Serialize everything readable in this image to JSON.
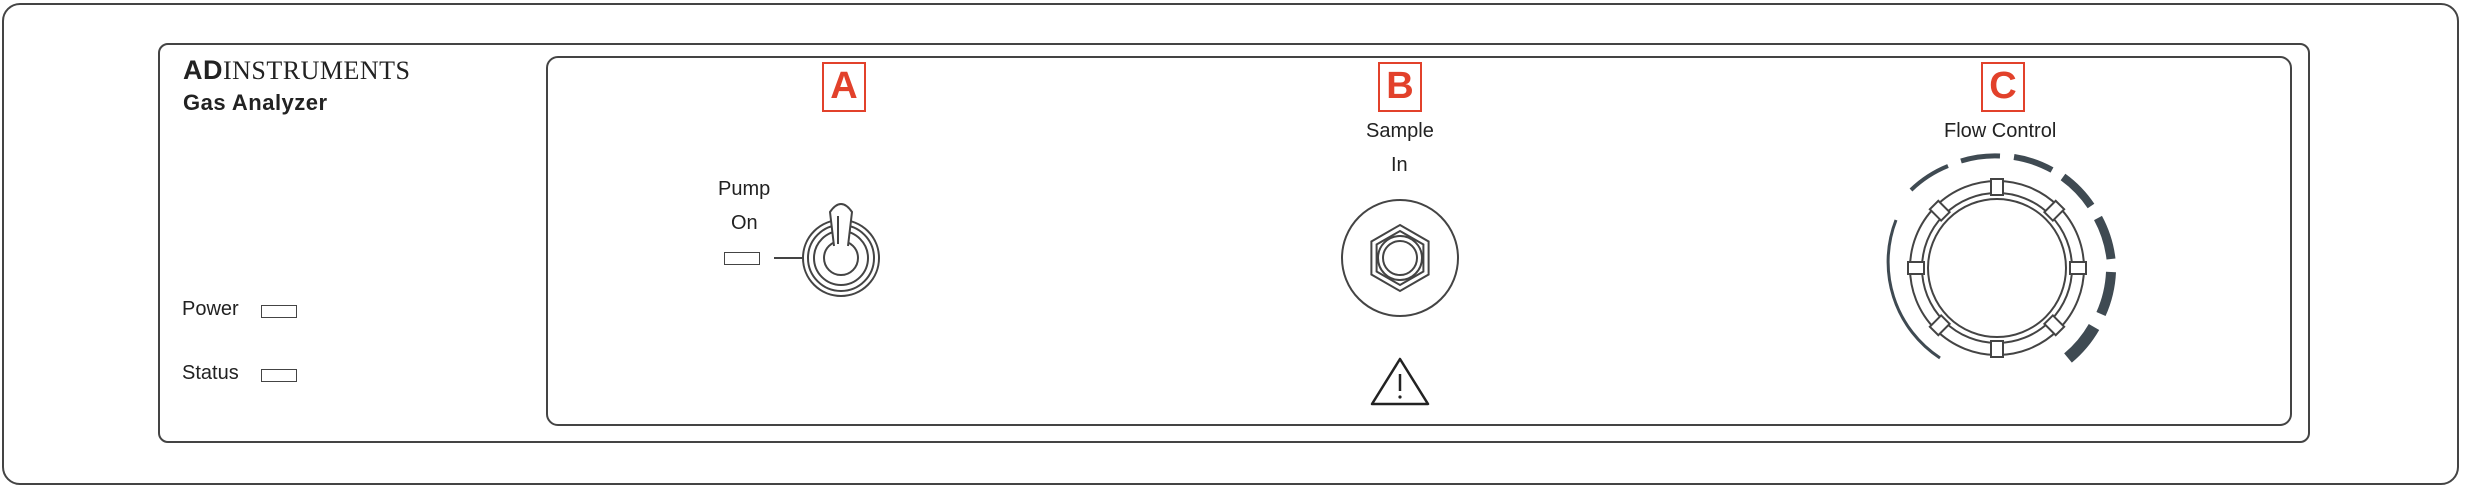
{
  "brand": {
    "ad": "AD",
    "name": "INSTRUMENTS"
  },
  "model": "Gas Analyzer",
  "indicators": [
    {
      "label": "Power"
    },
    {
      "label": "Status"
    }
  ],
  "callouts": {
    "a": "A",
    "b": "B",
    "c": "C"
  },
  "pump": {
    "line1": "Pump",
    "line2": "On"
  },
  "sample": {
    "line1": "Sample",
    "line2": "In"
  },
  "flow": {
    "label": "Flow Control"
  },
  "colors": {
    "callout": "#e2412b",
    "line": "#444444",
    "dial_ring": "#3f4a52"
  },
  "icons": [
    "toggle-switch-icon",
    "gas-inlet-connector-icon",
    "warning-triangle-icon",
    "flow-control-knob-icon"
  ]
}
